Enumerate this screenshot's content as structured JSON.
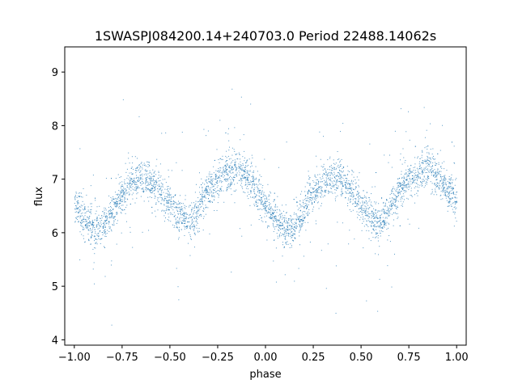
{
  "chart_data": {
    "type": "scatter",
    "title": "1SWASPJ084200.14+240703.0 Period 22488.14062s",
    "xlabel": "phase",
    "ylabel": "flux",
    "xlim": [
      -1.05,
      1.05
    ],
    "ylim": [
      3.9,
      9.47
    ],
    "xticks": [
      -1.0,
      -0.75,
      -0.5,
      -0.25,
      0.0,
      0.25,
      0.5,
      0.75,
      1.0
    ],
    "xtick_labels": [
      "−1.00",
      "−0.75",
      "−0.50",
      "−0.25",
      "0.00",
      "0.25",
      "0.50",
      "0.75",
      "1.00"
    ],
    "yticks": [
      4,
      5,
      6,
      7,
      8,
      9
    ],
    "ytick_labels": [
      "4",
      "5",
      "6",
      "7",
      "8",
      "9"
    ],
    "grid": false,
    "marker_color": "#1f77b4",
    "series": [
      {
        "points_description": "folded light curve, phase -1 to 1",
        "trend_points": [
          [
            -1.0,
            6.55
          ],
          [
            -0.95,
            6.25
          ],
          [
            -0.9,
            6.05
          ],
          [
            -0.85,
            6.1
          ],
          [
            -0.8,
            6.4
          ],
          [
            -0.75,
            6.75
          ],
          [
            -0.7,
            6.95
          ],
          [
            -0.65,
            7.05
          ],
          [
            -0.6,
            6.95
          ],
          [
            -0.55,
            6.8
          ],
          [
            -0.5,
            6.55
          ],
          [
            -0.45,
            6.3
          ],
          [
            -0.4,
            6.2
          ],
          [
            -0.35,
            6.45
          ],
          [
            -0.3,
            6.8
          ],
          [
            -0.25,
            7.0
          ],
          [
            -0.2,
            7.15
          ],
          [
            -0.15,
            7.2
          ],
          [
            -0.1,
            7.05
          ],
          [
            -0.05,
            6.8
          ],
          [
            0.0,
            6.55
          ],
          [
            0.05,
            6.25
          ],
          [
            0.1,
            6.05
          ],
          [
            0.15,
            6.1
          ],
          [
            0.2,
            6.4
          ],
          [
            0.25,
            6.75
          ],
          [
            0.3,
            6.95
          ],
          [
            0.35,
            7.05
          ],
          [
            0.4,
            6.95
          ],
          [
            0.45,
            6.8
          ],
          [
            0.5,
            6.55
          ],
          [
            0.55,
            6.3
          ],
          [
            0.6,
            6.2
          ],
          [
            0.65,
            6.45
          ],
          [
            0.7,
            6.8
          ],
          [
            0.75,
            7.0
          ],
          [
            0.8,
            7.15
          ],
          [
            0.85,
            7.2
          ],
          [
            0.9,
            7.05
          ],
          [
            0.95,
            6.8
          ],
          [
            1.0,
            6.55
          ]
        ]
      }
    ]
  }
}
